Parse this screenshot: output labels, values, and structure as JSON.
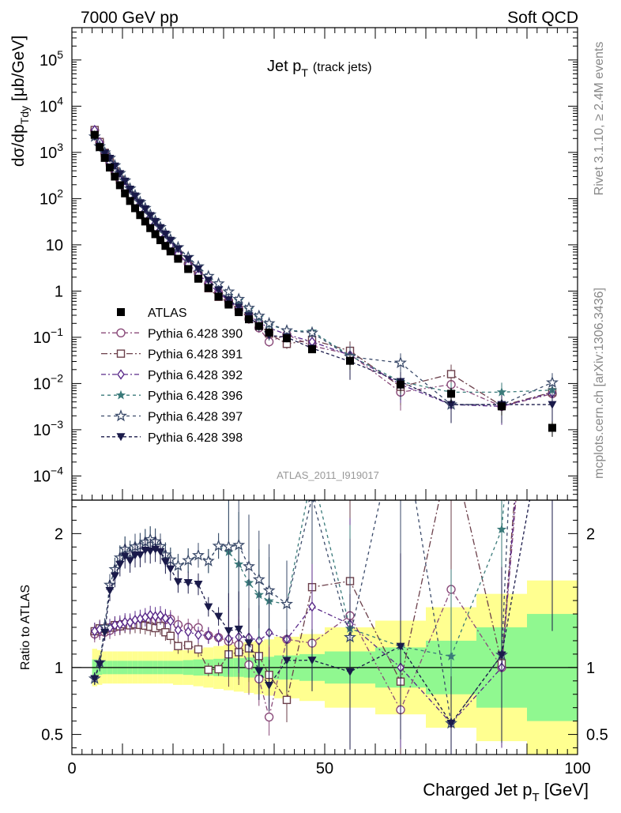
{
  "header": {
    "left": "7000 GeV pp",
    "right": "Soft QCD"
  },
  "title": {
    "main": "Jet p",
    "sub": "T",
    "paren": "(track jets)"
  },
  "side_labels": {
    "rivet": "Rivet 3.1.10, ≥ 2.4M events",
    "mcplots": "mcplots.cern.ch [arXiv:1306.3436]"
  },
  "analysis_id": "ATLAS_2011_I919017",
  "chart_data": [
    {
      "type": "scatter",
      "panel": "main",
      "yscale": "log",
      "ylim": [
        3e-05,
        500000.0
      ],
      "xlim": [
        0,
        100
      ],
      "ylabel": {
        "a": "dσ/dp",
        "sub": "Tdy",
        "b": " [μb/GeV]"
      },
      "yticks": [
        {
          "v": 100000.0,
          "b": "10",
          "e": "5"
        },
        {
          "v": 10000.0,
          "b": "10",
          "e": "4"
        },
        {
          "v": 1000.0,
          "b": "10",
          "e": "3"
        },
        {
          "v": 100.0,
          "b": "10",
          "e": "2"
        },
        {
          "v": 10,
          "b": "10",
          "e": ""
        },
        {
          "v": 1,
          "b": "1",
          "e": ""
        },
        {
          "v": 0.1,
          "b": "10",
          "e": "−1"
        },
        {
          "v": 0.01,
          "b": "10",
          "e": "−2"
        },
        {
          "v": 0.001,
          "b": "10",
          "e": "−3"
        },
        {
          "v": 0.0001,
          "b": "10",
          "e": "−4"
        }
      ],
      "x": [
        4.5,
        5.5,
        6.5,
        7.5,
        8.5,
        9.5,
        10.5,
        11.5,
        12.5,
        13.5,
        14.5,
        15.5,
        16.5,
        17.5,
        18.5,
        19.5,
        21,
        23,
        25,
        27,
        29,
        31,
        33,
        35,
        37,
        39,
        42.5,
        47.5,
        55,
        65,
        75,
        85,
        95
      ],
      "series": [
        {
          "name": "ATLAS",
          "color": "#000000",
          "marker": "square-filled",
          "dash": "",
          "values": [
            2400,
            1300,
            760,
            470,
            300,
            195,
            130,
            89,
            62,
            44,
            32,
            23,
            17,
            12.6,
            9.5,
            7.2,
            5.0,
            3.0,
            1.85,
            1.17,
            0.76,
            0.51,
            0.35,
            0.245,
            0.175,
            0.127,
            0.095,
            0.055,
            0.031,
            0.0095,
            0.006,
            0.0032,
            0.0011
          ]
        },
        {
          "name": "Pythia 6.428 390",
          "color": "#8a4b7a",
          "marker": "circle-open",
          "dash": "6 3 2 3",
          "values": [
            3000,
            1650,
            960,
            600,
            390,
            255,
            172,
            118,
            83,
            59,
            43,
            31,
            23,
            17,
            12.9,
            9.8,
            6.6,
            3.9,
            2.4,
            1.45,
            0.93,
            0.61,
            0.41,
            0.25,
            0.16,
            0.08,
            0.115,
            0.065,
            0.043,
            0.0065,
            0.0095,
            0.0032,
            0.006
          ]
        },
        {
          "name": "Pythia 6.428 391",
          "color": "#6b3f4a",
          "marker": "square-open",
          "dash": "8 3 2 3",
          "values": [
            3050,
            1680,
            980,
            610,
            395,
            255,
            172,
            117,
            82,
            58,
            42,
            30,
            22,
            16.5,
            12,
            8.9,
            5.8,
            3.5,
            2.1,
            1.15,
            0.75,
            0.56,
            0.39,
            0.28,
            0.19,
            0.12,
            0.072,
            0.088,
            0.051,
            0.0085,
            0.016,
            0.0033,
            0.0065
          ]
        },
        {
          "name": "Pythia 6.428 392",
          "color": "#5a2a8a",
          "marker": "diamond-open",
          "dash": "6 3 2 3",
          "values": [
            3050,
            1670,
            975,
            610,
            395,
            258,
            174,
            119,
            84,
            60,
            44,
            32,
            23.5,
            17.5,
            13,
            9.7,
            6.4,
            3.8,
            2.3,
            1.45,
            0.93,
            0.62,
            0.43,
            0.3,
            0.21,
            0.16,
            0.115,
            0.08,
            0.041,
            0.0095,
            0.0035,
            0.0032,
            0.0063
          ]
        },
        {
          "name": "Pythia 6.428 396",
          "color": "#3a7a7a",
          "marker": "star-filled",
          "dash": "4 4",
          "values": [
            2200,
            1350,
            990,
            760,
            520,
            355,
            245,
            165,
            118,
            84,
            62,
            45,
            33,
            24,
            17.5,
            13,
            8.8,
            5.4,
            3.4,
            2.1,
            1.45,
            0.95,
            0.62,
            0.4,
            0.27,
            0.19,
            0.14,
            0.135,
            0.04,
            0.011,
            0.0065,
            0.0065,
            0.0072
          ]
        },
        {
          "name": "Pythia 6.428 397",
          "color": "#3a4a6a",
          "marker": "star-open",
          "dash": "4 4",
          "values": [
            2200,
            1350,
            990,
            760,
            520,
            355,
            245,
            165,
            118,
            84,
            62,
            45,
            33,
            24,
            17.5,
            13,
            8.8,
            5.4,
            3.4,
            2.1,
            1.45,
            0.97,
            0.67,
            0.43,
            0.29,
            0.2,
            0.14,
            0.125,
            0.038,
            0.028,
            0.0035,
            0.0035,
            0.0105
          ]
        },
        {
          "name": "Pythia 6.428 398",
          "color": "#1a1a4a",
          "marker": "triangle-down-filled",
          "dash": "4 3",
          "values": [
            2200,
            1330,
            960,
            740,
            505,
            345,
            238,
            160,
            114,
            81,
            60,
            43,
            32,
            23.5,
            17,
            12.5,
            8.2,
            4.9,
            3.0,
            1.7,
            1.05,
            0.65,
            0.45,
            0.29,
            0.17,
            0.11,
            0.1,
            0.058,
            0.03,
            0.011,
            0.0035,
            0.0035,
            0.0035
          ]
        }
      ]
    },
    {
      "type": "scatter",
      "panel": "ratio",
      "ylabel": "Ratio to ATLAS",
      "xlabel": {
        "a": "Charged Jet p",
        "sub": "T",
        "b": " [GeV]"
      },
      "xlim": [
        0,
        100
      ],
      "ylim": [
        0.35,
        2.25
      ],
      "xticks": [
        "0",
        "50",
        "100"
      ],
      "yticks": [
        "0.5",
        "1",
        "2"
      ],
      "band_edges": [
        4,
        5,
        6,
        7,
        8,
        9,
        10,
        11,
        12,
        13,
        14,
        15,
        16,
        17,
        18,
        19,
        20,
        22,
        24,
        26,
        28,
        30,
        32,
        34,
        36,
        38,
        40,
        45,
        50,
        60,
        70,
        80,
        90,
        100
      ],
      "band_inner": [
        0.06,
        0.055,
        0.05,
        0.05,
        0.05,
        0.05,
        0.05,
        0.05,
        0.05,
        0.05,
        0.05,
        0.05,
        0.05,
        0.05,
        0.05,
        0.05,
        0.05,
        0.055,
        0.06,
        0.06,
        0.065,
        0.07,
        0.07,
        0.075,
        0.075,
        0.08,
        0.09,
        0.1,
        0.12,
        0.15,
        0.2,
        0.3,
        0.4
      ],
      "band_outer": [
        0.14,
        0.13,
        0.12,
        0.12,
        0.12,
        0.12,
        0.12,
        0.12,
        0.12,
        0.12,
        0.12,
        0.12,
        0.12,
        0.12,
        0.12,
        0.12,
        0.13,
        0.13,
        0.14,
        0.15,
        0.16,
        0.17,
        0.18,
        0.19,
        0.2,
        0.21,
        0.23,
        0.25,
        0.3,
        0.35,
        0.45,
        0.55,
        0.65
      ]
    }
  ]
}
